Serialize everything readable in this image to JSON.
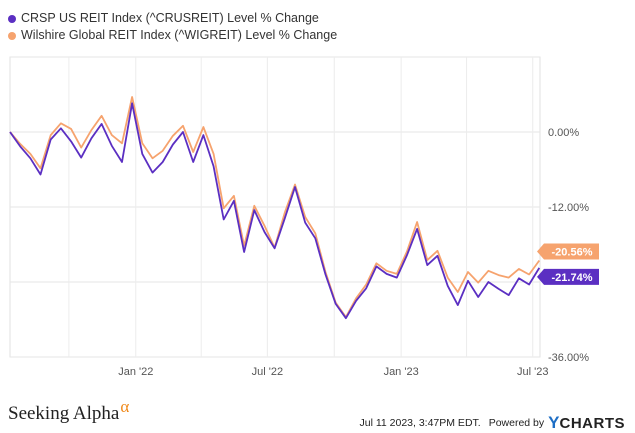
{
  "chart_data": {
    "type": "line",
    "x_ticks": [
      "Jan '22",
      "Jul '22",
      "Jan '23",
      "Jul '23"
    ],
    "y_ticks": [
      "0.00%",
      "-12.00%",
      "-36.00%"
    ],
    "ylim": [
      -36,
      12
    ],
    "grid": true,
    "legend_position": "top-left",
    "series": [
      {
        "name": "CRSP US REIT Index (^CRUSREIT) Level % Change",
        "color": "#5b2fc2",
        "end_label": "-21.74%",
        "x": [
          "2021-07-12",
          "2021-07-26",
          "2021-08-09",
          "2021-08-23",
          "2021-09-06",
          "2021-09-20",
          "2021-10-04",
          "2021-10-18",
          "2021-11-01",
          "2021-11-15",
          "2021-11-29",
          "2021-12-13",
          "2021-12-27",
          "2022-01-10",
          "2022-01-24",
          "2022-02-07",
          "2022-02-21",
          "2022-03-07",
          "2022-03-21",
          "2022-04-04",
          "2022-04-18",
          "2022-05-02",
          "2022-05-16",
          "2022-05-30",
          "2022-06-13",
          "2022-06-27",
          "2022-07-11",
          "2022-07-25",
          "2022-08-08",
          "2022-08-22",
          "2022-09-05",
          "2022-09-19",
          "2022-10-03",
          "2022-10-17",
          "2022-10-31",
          "2022-11-14",
          "2022-11-28",
          "2022-12-12",
          "2022-12-26",
          "2023-01-09",
          "2023-01-23",
          "2023-02-06",
          "2023-02-20",
          "2023-03-06",
          "2023-03-20",
          "2023-04-03",
          "2023-04-17",
          "2023-05-01",
          "2023-05-15",
          "2023-05-29",
          "2023-06-12",
          "2023-06-26",
          "2023-07-10"
        ],
        "y": [
          0.0,
          -2.3,
          -4.2,
          -6.8,
          -1.2,
          0.6,
          -1.5,
          -4.1,
          -1.0,
          1.3,
          -2.2,
          -4.8,
          4.6,
          -3.5,
          -6.5,
          -4.8,
          -2.0,
          0.0,
          -4.8,
          -0.5,
          -5.5,
          -14.0,
          -11.0,
          -19.2,
          -12.5,
          -16.0,
          -18.6,
          -13.8,
          -8.8,
          -14.5,
          -17.0,
          -22.8,
          -27.5,
          -29.8,
          -27.0,
          -25.0,
          -21.5,
          -22.7,
          -23.3,
          -19.7,
          -15.5,
          -21.3,
          -19.8,
          -24.6,
          -27.7,
          -23.8,
          -26.4,
          -24.0,
          -25.1,
          -26.1,
          -23.4,
          -24.4,
          -21.74
        ]
      },
      {
        "name": "Wilshire Global REIT Index (^WIGREIT) Level % Change",
        "color": "#f6a36e",
        "end_label": "-20.56%",
        "x": [
          "2021-07-12",
          "2021-07-26",
          "2021-08-09",
          "2021-08-23",
          "2021-09-06",
          "2021-09-20",
          "2021-10-04",
          "2021-10-18",
          "2021-11-01",
          "2021-11-15",
          "2021-11-29",
          "2021-12-13",
          "2021-12-27",
          "2022-01-10",
          "2022-01-24",
          "2022-02-07",
          "2022-02-21",
          "2022-03-07",
          "2022-03-21",
          "2022-04-04",
          "2022-04-18",
          "2022-05-02",
          "2022-05-16",
          "2022-05-30",
          "2022-06-13",
          "2022-06-27",
          "2022-07-11",
          "2022-07-25",
          "2022-08-08",
          "2022-08-22",
          "2022-09-05",
          "2022-09-19",
          "2022-10-03",
          "2022-10-17",
          "2022-10-31",
          "2022-11-14",
          "2022-11-28",
          "2022-12-12",
          "2022-12-26",
          "2023-01-09",
          "2023-01-23",
          "2023-02-06",
          "2023-02-20",
          "2023-03-06",
          "2023-03-20",
          "2023-04-03",
          "2023-04-17",
          "2023-05-01",
          "2023-05-15",
          "2023-05-29",
          "2023-06-12",
          "2023-06-26",
          "2023-07-10"
        ],
        "y": [
          0.0,
          -1.9,
          -3.5,
          -5.8,
          -0.5,
          1.4,
          0.5,
          -2.5,
          0.3,
          2.6,
          -0.5,
          -1.8,
          5.6,
          -1.8,
          -4.2,
          -3.0,
          -0.6,
          1.0,
          -3.2,
          0.8,
          -3.5,
          -12.2,
          -10.2,
          -18.2,
          -11.8,
          -15.0,
          -18.5,
          -12.9,
          -8.4,
          -13.6,
          -16.2,
          -22.4,
          -27.3,
          -29.6,
          -26.6,
          -24.4,
          -21.0,
          -22.2,
          -22.7,
          -19.1,
          -14.4,
          -20.5,
          -19.0,
          -23.3,
          -25.6,
          -22.4,
          -24.1,
          -22.2,
          -22.9,
          -23.3,
          -21.9,
          -22.8,
          -20.56
        ]
      }
    ]
  },
  "footer": {
    "brand_name": "Seeking Alpha",
    "brand_mark": "α",
    "timestamp": "Jul 11 2023, 3:47PM EDT.",
    "powered_by": "Powered by",
    "provider_y": "Y",
    "provider_rest": "CHARTS"
  }
}
